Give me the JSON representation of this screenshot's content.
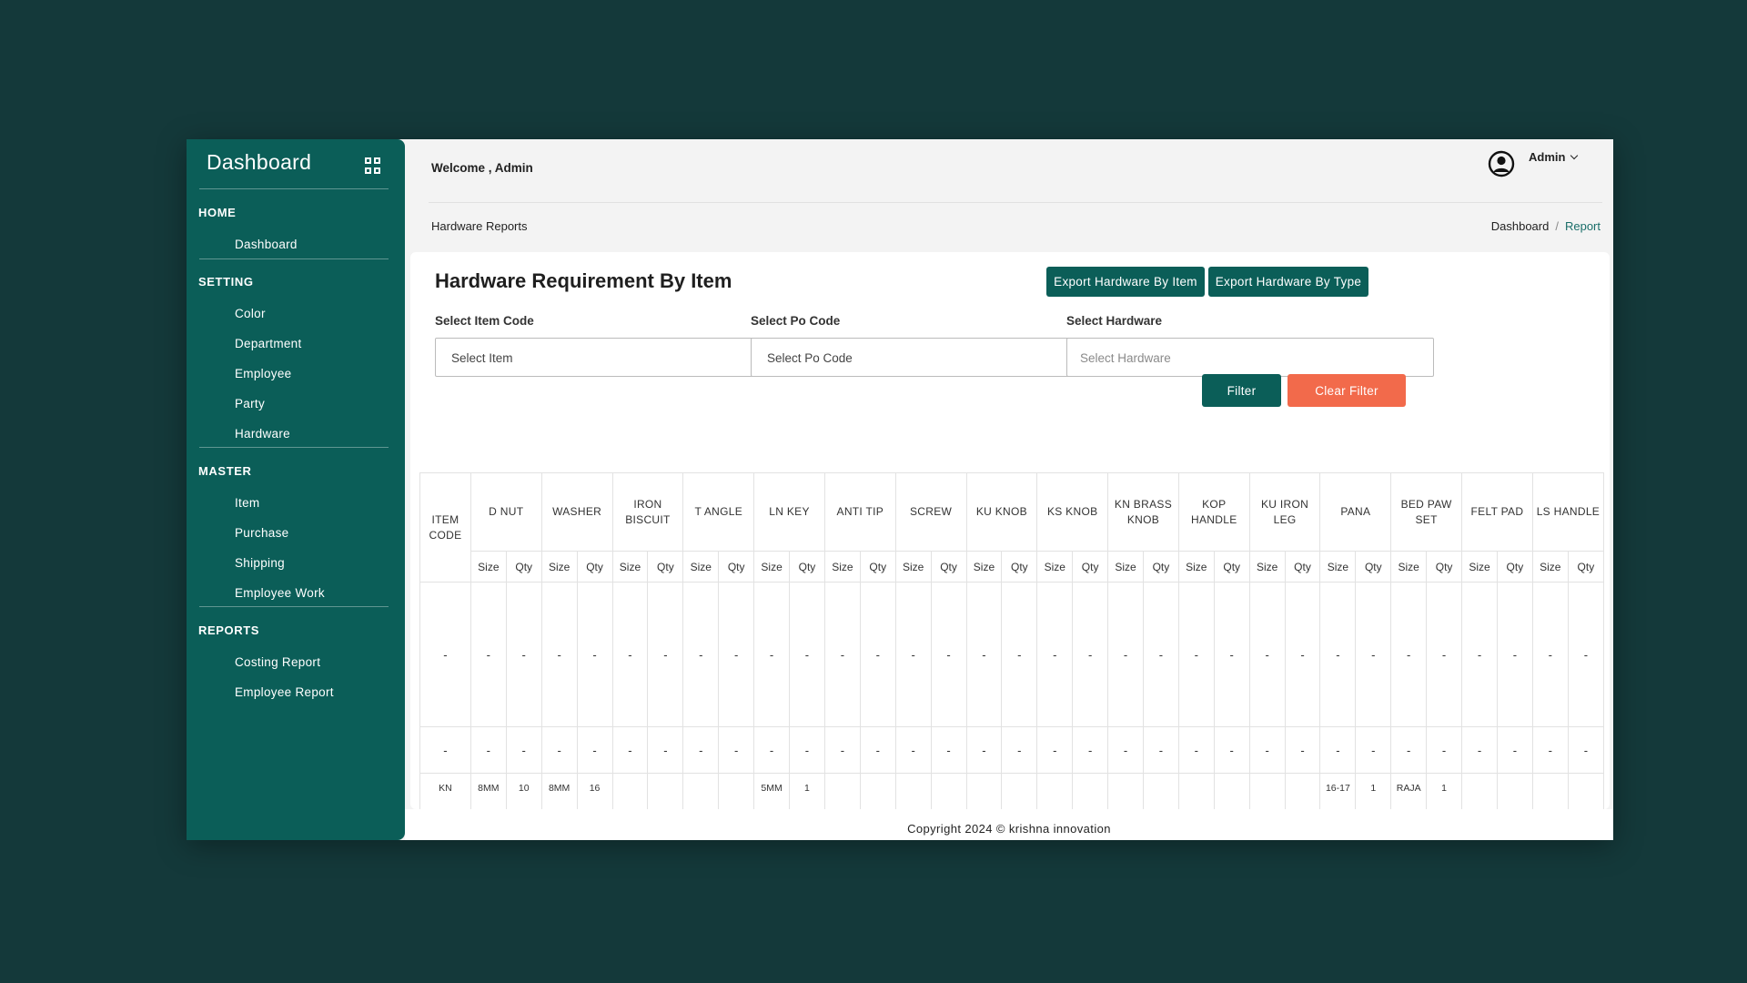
{
  "sidebar": {
    "brand": "Dashboard",
    "sections": [
      {
        "heading": "HOME",
        "items": [
          "Dashboard"
        ]
      },
      {
        "heading": "SETTING",
        "items": [
          "Color",
          "Department",
          "Employee",
          "Party",
          "Hardware"
        ]
      },
      {
        "heading": "MASTER",
        "items": [
          "Item",
          "Purchase",
          "Shipping",
          "Employee Work"
        ]
      },
      {
        "heading": "REPORTS",
        "items": [
          "Costing Report",
          "Employee Report"
        ]
      }
    ]
  },
  "header": {
    "welcome": "Welcome , Admin",
    "user": "Admin",
    "page": "Hardware Reports",
    "breadcrumb": [
      "Dashboard",
      "Report"
    ]
  },
  "card": {
    "title": "Hardware Requirement By Item",
    "export_item": "Export Hardware By Item",
    "export_type": "Export Hardware By Type",
    "filters": [
      {
        "label": "Select Item Code",
        "value": "Select Item"
      },
      {
        "label": "Select Po Code",
        "value": "Select Po Code"
      },
      {
        "label": "Select Hardware",
        "placeholder": "Select Hardware"
      }
    ],
    "filter_btn": "Filter",
    "clear_btn": "Clear Filter"
  },
  "table": {
    "first_header": "ITEM CODE",
    "groups": [
      "D NUT",
      "WASHER",
      "IRON BISCUIT",
      "T ANGLE",
      "LN KEY",
      "ANTI TIP",
      "SCREW",
      "KU KNOB",
      "KS KNOB",
      "KN BRASS KNOB",
      "KOP HANDLE",
      "KU IRON LEG",
      "PANA",
      "BED PAW SET",
      "FELT PAD",
      "LS HANDLE"
    ],
    "sub": [
      "Size",
      "Qty"
    ],
    "rows": [
      {
        "code": "-",
        "cells": [
          "-",
          "-",
          "-",
          "-",
          "-",
          "-",
          "-",
          "-",
          "-",
          "-",
          "-",
          "-",
          "-",
          "-",
          "-",
          "-",
          "-",
          "-",
          "-",
          "-",
          "-",
          "-",
          "-",
          "-",
          "-",
          "-",
          "-",
          "-",
          "-",
          "-",
          "-",
          "-"
        ]
      },
      {
        "code": "-",
        "cells": [
          "-",
          "-",
          "-",
          "-",
          "-",
          "-",
          "-",
          "-",
          "-",
          "-",
          "-",
          "-",
          "-",
          "-",
          "-",
          "-",
          "-",
          "-",
          "-",
          "-",
          "-",
          "-",
          "-",
          "-",
          "-",
          "-",
          "-",
          "-",
          "-",
          "-",
          "-",
          "-"
        ]
      },
      {
        "code": "KN",
        "cells": [
          "8MM",
          "10",
          "8MM",
          "16",
          "",
          "",
          "",
          "",
          "5MM",
          "1",
          "",
          "",
          "",
          "",
          "",
          "",
          "",
          "",
          "",
          "",
          "",
          "",
          "",
          "",
          "16-17",
          "1",
          "RAJA",
          "1",
          "",
          "",
          "",
          ""
        ]
      }
    ]
  },
  "footer": "Copyright 2024 © krishna innovation"
}
